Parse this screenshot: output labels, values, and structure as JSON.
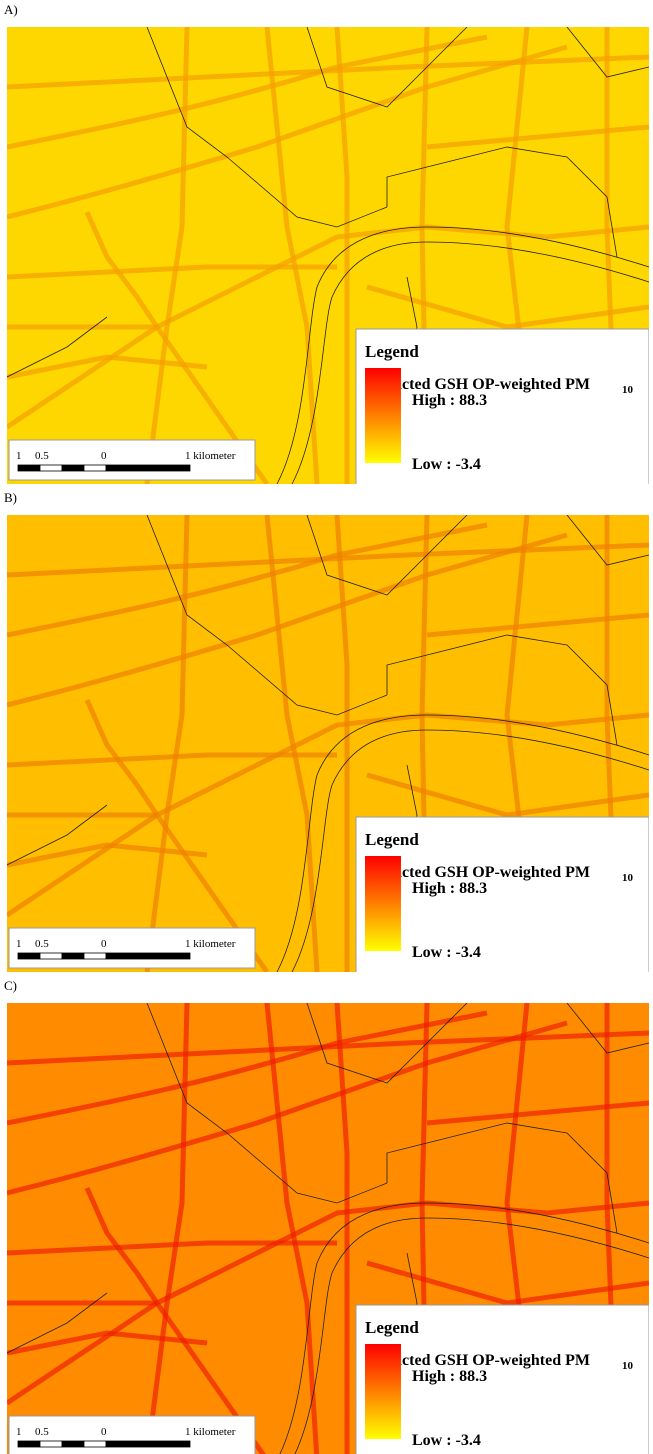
{
  "panels": [
    {
      "label": "A)",
      "background_color": "#ffd700",
      "road_color": "#f5a000",
      "legend": {
        "title": "Legend",
        "quantity": "Predicted GSH OP-weighted PM",
        "quantity_subscript": "10",
        "high": "High : 88.3",
        "low": "Low : -3.4"
      },
      "scale_bar": [
        "1",
        "0.5",
        "0",
        "1 kilometer"
      ]
    },
    {
      "label": "B)",
      "background_color": "#ffbf00",
      "road_color": "#f08000",
      "legend": {
        "title": "Legend",
        "quantity": "Predicted GSH OP-weighted PM",
        "quantity_subscript": "10",
        "high": "High : 88.3",
        "low": "Low : -3.4"
      },
      "scale_bar": [
        "1",
        "0.5",
        "0",
        "1 kilometer"
      ]
    },
    {
      "label": "C)",
      "background_color": "#ff8c00",
      "road_color": "#f02000",
      "legend": {
        "title": "Legend",
        "quantity": "Predicted GSH OP-weighted PM",
        "quantity_subscript": "10",
        "high": "High : 88.3",
        "low": "Low : -3.4"
      },
      "scale_bar": [
        "1",
        "0.5",
        "0",
        "1 kilometer"
      ]
    }
  ]
}
